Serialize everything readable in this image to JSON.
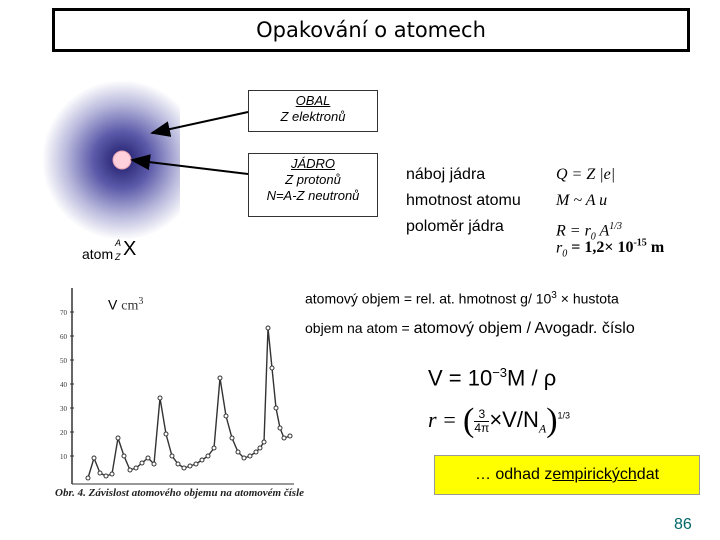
{
  "title": "Opakování o atomech",
  "atom_diagram": {
    "obal_title": "OBAL",
    "obal_desc": "Z elektronů",
    "jadro_title": "JÁDRO",
    "jadro_desc1": "Z protonů",
    "jadro_desc2": "N=A-Z neutronů",
    "atom_label": "atom",
    "symbol_A": "A",
    "symbol_Z": "Z",
    "symbol_X": "X"
  },
  "nucleus_props": {
    "charge_label": "náboj jádra",
    "mass_label": "hmotnost atomu",
    "radius_label": "poloměr jádra",
    "charge_formula": "Q = Z |e|",
    "mass_formula": "M ~ A u",
    "radius_formula_prefix": "R = r",
    "radius_formula_sub": "0",
    "radius_formula_mid": " A",
    "radius_formula_sup": "1/3",
    "r0_prefix": "r",
    "r0_sub": "0",
    "r0_value": " = 1,2× 10",
    "r0_exp": "-15",
    "r0_unit": " m"
  },
  "graph": {
    "v_label": "V",
    "v_unit": "cm",
    "v_unit_exp": "3",
    "y_ticks": [
      "70",
      "60",
      "50",
      "40",
      "30",
      "20",
      "10"
    ],
    "caption": "Obr. 4. Závislost atomového objemu na atomovém čísle"
  },
  "text": {
    "line1_a": "atomový objem = rel. at. hmotnost  g/ 10",
    "line1_exp": "3",
    "line1_b": " × hustota",
    "line2_a": "objem na atom = ",
    "line2_b": "atomový objem / Avogadr. číslo"
  },
  "equations": {
    "eq1": "V = 10",
    "eq1_exp": "−3",
    "eq1_b": "M / ρ",
    "eq2_r": "r =",
    "eq2_frac_num": "3",
    "eq2_frac_den": "4π",
    "eq2_mid": "×V/N",
    "eq2_sub": "A",
    "eq2_exp": "1/3"
  },
  "estimate": {
    "prefix": "… odhad z ",
    "underlined": "empirických ",
    "suffix": "dat",
    "bg_color": "#ffff00"
  },
  "page_number": "86"
}
